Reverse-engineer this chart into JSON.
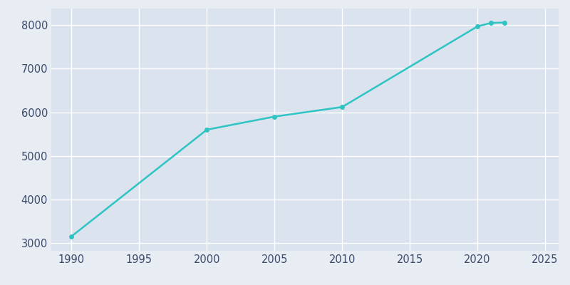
{
  "years": [
    1990,
    2000,
    2005,
    2010,
    2020,
    2021,
    2022
  ],
  "population": [
    3153,
    5600,
    5900,
    6120,
    7970,
    8050,
    8060
  ],
  "line_color": "#2EC4C4",
  "marker_color": "#2EC4C4",
  "figure_bg_color": "#E8EDF4",
  "plot_bg_color": "#DAE3EE",
  "grid_color": "#FFFFFF",
  "tick_color": "#3B4A6B",
  "xlim": [
    1988.5,
    2026
  ],
  "ylim": [
    2820,
    8380
  ],
  "yticks": [
    3000,
    4000,
    5000,
    6000,
    7000,
    8000
  ],
  "xticks": [
    1990,
    1995,
    2000,
    2005,
    2010,
    2015,
    2020,
    2025
  ],
  "figsize": [
    8.0,
    4.0
  ],
  "dpi": 100,
  "linewidth": 1.8,
  "markersize": 4
}
